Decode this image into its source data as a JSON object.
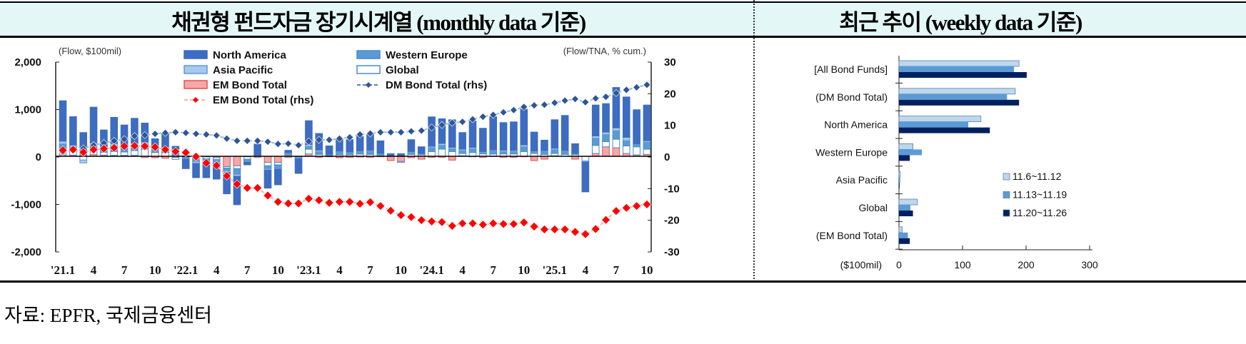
{
  "header": {
    "left_title": "채권형 펀드자금 장기시계열 (monthly data 기준)",
    "right_title": "최근 추이 (weekly data 기준)"
  },
  "footer": {
    "source": "자료: EPFR, 국제금융센터"
  },
  "chart_data": [
    {
      "type": "bar",
      "stacked": true,
      "left_unit_label": "(Flow, $100mil)",
      "right_unit_label": "(Flow/TNA, % cum.)",
      "ylim": [
        -2000,
        2000
      ],
      "y_ticks": [
        "2,000",
        "1,000",
        "0",
        "-1,000",
        "-2,000"
      ],
      "y2lim": [
        -30,
        30
      ],
      "y2_ticks": [
        "30",
        "20",
        "10",
        "0",
        "-10",
        "-20",
        "-30"
      ],
      "x_tick_labels": [
        "'21.1",
        "4",
        "7",
        "10",
        "'22.1",
        "4",
        "7",
        "10",
        "'23.1",
        "4",
        "7",
        "10",
        "'24.1",
        "4",
        "7",
        "10",
        "'25.1",
        "4",
        "7",
        "10"
      ],
      "legend_placement": "top",
      "colors": {
        "North America": "#3d6cc0",
        "Western Europe": "#5b9bd5",
        "Asia Pacific": "#a9c9ec",
        "Global": "#ffffff",
        "EM Bond Total": "#f7a7a7",
        "DM Bond Total (rhs)": "#2f5597",
        "EM Bond Total (rhs)": "#ff0000"
      },
      "series": [
        {
          "name": "North America",
          "axis": "left",
          "values": [
            850,
            600,
            420,
            750,
            350,
            550,
            450,
            520,
            400,
            200,
            280,
            50,
            -200,
            -300,
            -300,
            -330,
            -450,
            -600,
            -60,
            230,
            -380,
            -330,
            50,
            -300,
            500,
            350,
            180,
            260,
            260,
            300,
            330,
            260,
            40,
            40,
            250,
            140,
            620,
            520,
            580,
            350,
            550,
            490,
            700,
            580,
            600,
            750,
            400,
            220,
            600,
            740,
            200,
            -630,
            650,
            600,
            850,
            850,
            720,
            750
          ]
        },
        {
          "name": "Western Europe",
          "axis": "left",
          "values": [
            80,
            60,
            50,
            100,
            80,
            120,
            80,
            100,
            100,
            60,
            80,
            60,
            -30,
            -60,
            -70,
            -50,
            -60,
            -120,
            -40,
            0,
            -60,
            -70,
            30,
            -20,
            60,
            60,
            20,
            60,
            40,
            50,
            70,
            30,
            10,
            10,
            40,
            20,
            80,
            80,
            60,
            60,
            80,
            30,
            70,
            50,
            50,
            100,
            30,
            60,
            80,
            60,
            20,
            0,
            150,
            150,
            180,
            110,
            40,
            150
          ]
        },
        {
          "name": "Asia Pacific",
          "axis": "left",
          "values": [
            60,
            40,
            -60,
            50,
            40,
            50,
            40,
            60,
            50,
            30,
            40,
            100,
            -20,
            -40,
            -30,
            -30,
            -30,
            -40,
            -20,
            10,
            -30,
            -20,
            20,
            -10,
            40,
            30,
            10,
            20,
            20,
            20,
            20,
            10,
            5,
            5,
            20,
            10,
            30,
            40,
            30,
            30,
            30,
            20,
            20,
            30,
            25,
            40,
            20,
            20,
            30,
            20,
            10,
            -20,
            50,
            50,
            60,
            70,
            20,
            30
          ]
        },
        {
          "name": "Global",
          "axis": "left",
          "values": [
            150,
            110,
            -80,
            100,
            60,
            80,
            70,
            100,
            150,
            80,
            80,
            -40,
            10,
            -40,
            -40,
            -40,
            -30,
            -60,
            -50,
            15,
            -70,
            -50,
            25,
            -20,
            100,
            40,
            10,
            30,
            30,
            45,
            40,
            25,
            0,
            -20,
            40,
            30,
            100,
            150,
            100,
            50,
            80,
            50,
            40,
            50,
            50,
            100,
            60,
            40,
            50,
            40,
            35,
            -100,
            170,
            110,
            180,
            160,
            170,
            110
          ]
        },
        {
          "name": "EM Bond Total",
          "axis": "left",
          "values": [
            30,
            25,
            30,
            35,
            25,
            20,
            20,
            20,
            -25,
            -30,
            -40,
            -25,
            -10,
            -10,
            -10,
            -30,
            -220,
            -200,
            -10,
            -20,
            -130,
            -130,
            -20,
            -10,
            50,
            -20,
            -10,
            -30,
            -20,
            -15,
            -20,
            -10,
            -90,
            -110,
            -30,
            -60,
            -20,
            -20,
            -80,
            10,
            -10,
            -20,
            5,
            -20,
            -20,
            -10,
            -90,
            -60,
            10,
            0,
            -60,
            0,
            60,
            200,
            180,
            60,
            30,
            40
          ]
        },
        {
          "name": "DM Bond Total (rhs)",
          "axis": "right",
          "type": "line",
          "values": [
            1.3,
            1.9,
            2.5,
            3.5,
            4.2,
            4.9,
            5.4,
            6.4,
            6.7,
            7.1,
            7.4,
            7.6,
            7.4,
            7.1,
            6.9,
            6.6,
            5.6,
            4.9,
            4.9,
            4.9,
            4.6,
            3.9,
            4.0,
            3.5,
            4.7,
            5.2,
            5.2,
            5.6,
            6.0,
            6.9,
            7.2,
            7.6,
            7.6,
            7.6,
            7.9,
            8.1,
            9.1,
            9.9,
            10.6,
            10.9,
            11.7,
            12.5,
            13.1,
            13.9,
            14.6,
            15.6,
            16.1,
            16.3,
            16.9,
            17.6,
            18.1,
            17.1,
            18.3,
            18.8,
            20.0,
            21.0,
            21.8,
            22.6
          ]
        },
        {
          "name": "EM Bond Total (rhs)",
          "axis": "right",
          "type": "line",
          "values": [
            1.9,
            2.1,
            1.3,
            2.1,
            2.4,
            2.7,
            3.2,
            3.3,
            3.2,
            2.9,
            2.1,
            1.5,
            1.2,
            -0.1,
            -2.1,
            -2.9,
            -6.2,
            -8.8,
            -10.0,
            -10.0,
            -12.4,
            -14.4,
            -14.9,
            -14.9,
            -13.4,
            -13.9,
            -14.7,
            -14.4,
            -14.4,
            -15.0,
            -14.5,
            -15.7,
            -17.2,
            -18.6,
            -19.2,
            -20.2,
            -20.6,
            -20.8,
            -22.0,
            -21.2,
            -21.2,
            -21.6,
            -21.2,
            -21.4,
            -21.4,
            -20.9,
            -22.2,
            -23.1,
            -23.1,
            -23.1,
            -23.9,
            -24.6,
            -23.0,
            -20.1,
            -17.3,
            -16.3,
            -15.7,
            -15.2
          ]
        }
      ]
    },
    {
      "type": "bar",
      "orientation": "horizontal",
      "categories": [
        "[All Bond Funds]",
        "(DM Bond Total)",
        "North America",
        "Western Europe",
        "Asia Pacific",
        "Global",
        "(EM Bond Total)"
      ],
      "xlabel": "($100mil)",
      "xlim": [
        0,
        300
      ],
      "x_ticks": [
        "0",
        "100",
        "200",
        "300"
      ],
      "legend_placement": "bottom-right",
      "series": [
        {
          "name": "11.6~11.12",
          "color": "#bdd7ee",
          "values": [
            189,
            183,
            129,
            22,
            2,
            29,
            5
          ]
        },
        {
          "name": "11.13~11.19",
          "color": "#5b9bd5",
          "values": [
            181,
            170,
            109,
            36,
            2,
            18,
            14
          ]
        },
        {
          "name": "11.20~11.26",
          "color": "#002060",
          "values": [
            201,
            189,
            143,
            17,
            1,
            22,
            17
          ]
        }
      ]
    }
  ]
}
